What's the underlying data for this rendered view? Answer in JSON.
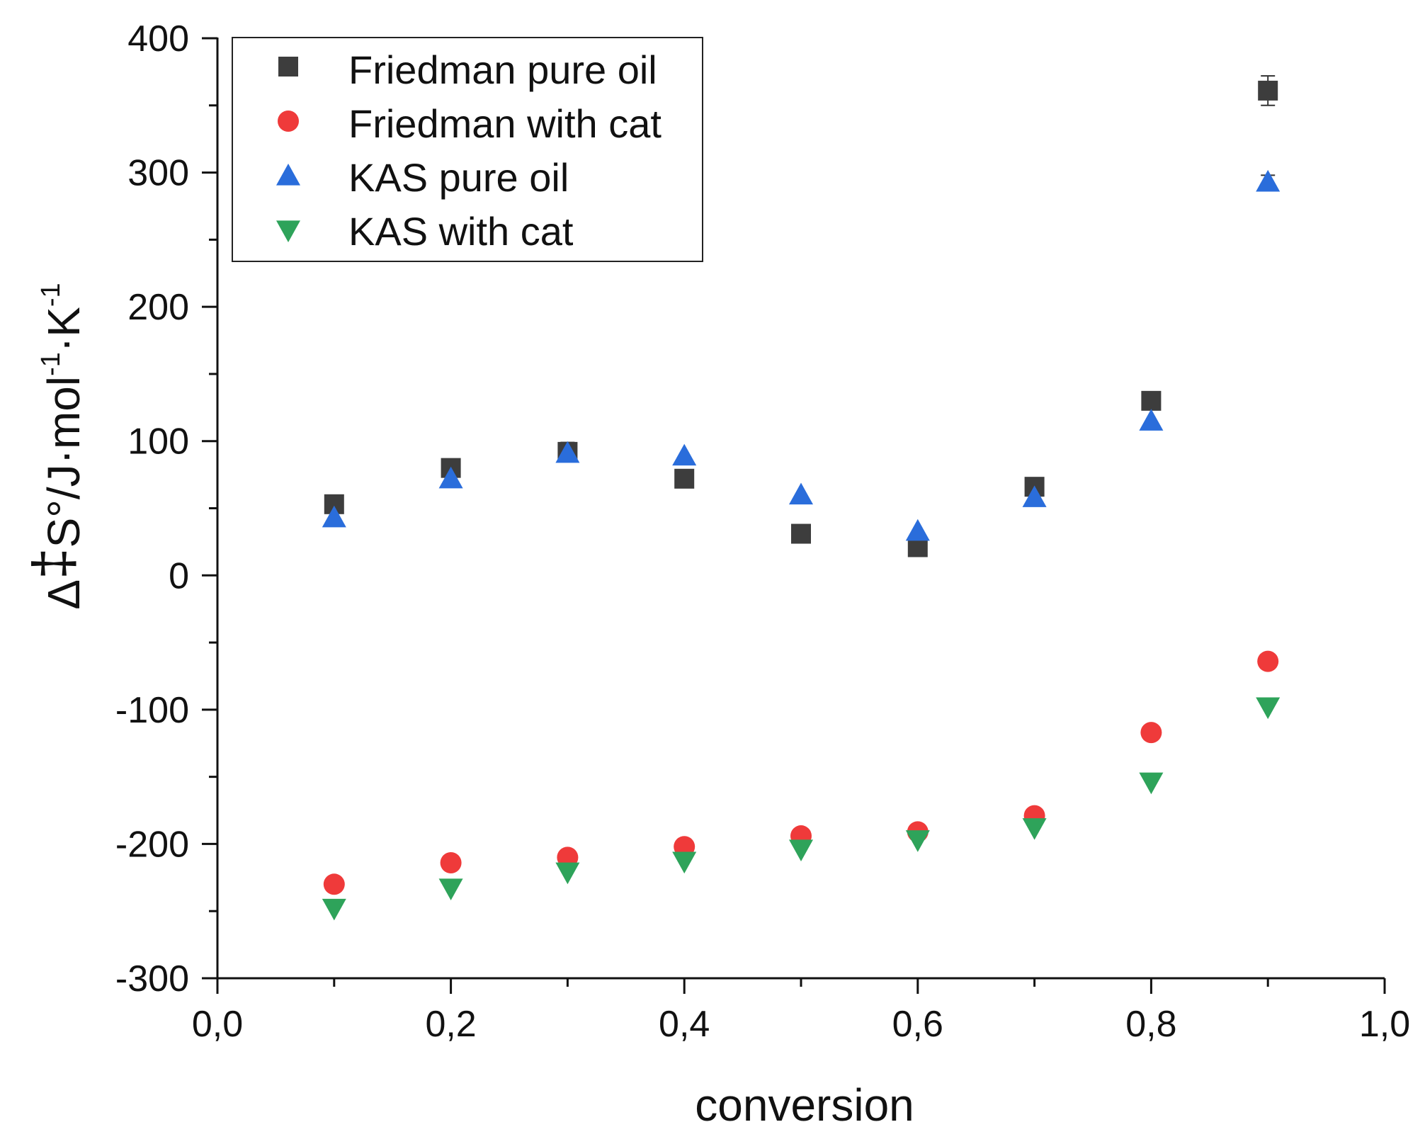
{
  "chart_data": {
    "type": "scatter",
    "title": "",
    "xlabel": "conversion",
    "ylabel": {
      "delta": "Δ",
      "dagger": "‡",
      "base": "S°/J·mol",
      "exp1": "-1",
      "mid": "·K",
      "exp2": "-1"
    },
    "xlim": [
      0.0,
      1.0
    ],
    "ylim": [
      -300,
      400
    ],
    "x_ticks": [
      0.0,
      0.2,
      0.4,
      0.6,
      0.8,
      1.0
    ],
    "x_tick_labels": [
      "0,0",
      "0,2",
      "0,4",
      "0,6",
      "0,8",
      "1,0"
    ],
    "y_ticks": [
      -300,
      -200,
      -100,
      0,
      100,
      200,
      300,
      400
    ],
    "y_tick_labels": [
      "-300",
      "-200",
      "-100",
      "0",
      "100",
      "200",
      "300",
      "400"
    ],
    "grid": false,
    "legend_position": "top-left",
    "x": [
      0.1,
      0.2,
      0.3,
      0.4,
      0.5,
      0.6,
      0.7,
      0.8,
      0.9
    ],
    "series": [
      {
        "name": "Friedman pure oil",
        "marker": "square",
        "color": "#3d3d3d",
        "values": [
          53,
          80,
          92,
          72,
          31,
          21,
          66,
          130,
          361
        ],
        "errors": [
          5,
          5,
          7,
          4,
          3,
          3,
          4,
          4,
          11
        ]
      },
      {
        "name": "Friedman with cat",
        "marker": "circle",
        "color": "#ef3a3a",
        "values": [
          -230,
          -214,
          -210,
          -202,
          -194,
          -191,
          -179,
          -117,
          -64
        ],
        "errors": [
          0,
          0,
          0,
          0,
          0,
          0,
          0,
          0,
          0
        ]
      },
      {
        "name": "KAS pure oil",
        "marker": "triangle-up",
        "color": "#2a6ddb",
        "values": [
          43,
          72,
          91,
          89,
          60,
          33,
          58,
          115,
          293
        ],
        "errors": [
          0,
          0,
          0,
          0,
          0,
          0,
          0,
          0,
          5
        ]
      },
      {
        "name": "KAS with cat",
        "marker": "triangle-down",
        "color": "#2ea35a",
        "values": [
          -248,
          -233,
          -221,
          -213,
          -204,
          -197,
          -188,
          -154,
          -98
        ],
        "errors": [
          0,
          0,
          0,
          0,
          0,
          0,
          0,
          0,
          0
        ]
      }
    ]
  }
}
